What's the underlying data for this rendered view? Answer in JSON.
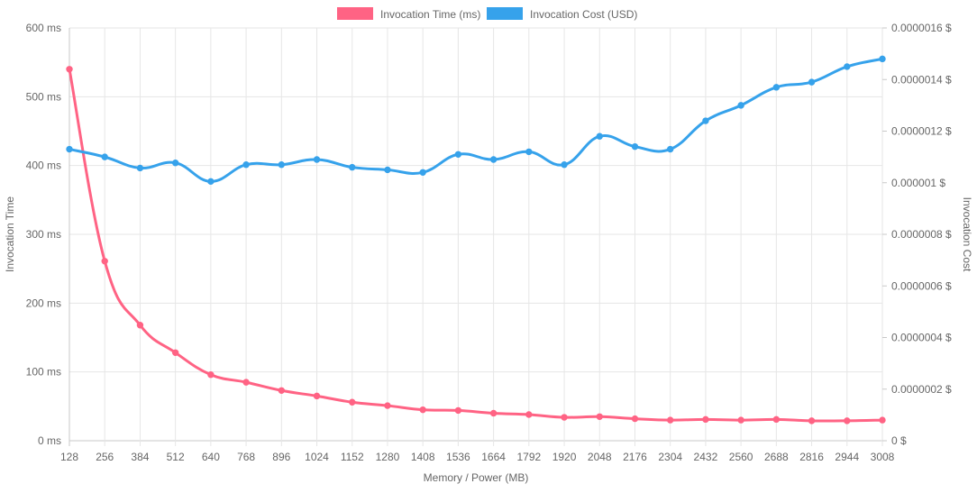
{
  "chart_data": {
    "type": "line",
    "title": "",
    "xlabel": "Memory / Power (MB)",
    "ylabel_left": "Invocation Time",
    "ylabel_right": "Invocation Cost",
    "categories": [
      "128",
      "256",
      "384",
      "512",
      "640",
      "768",
      "896",
      "1024",
      "1152",
      "1280",
      "1408",
      "1536",
      "1664",
      "1792",
      "1920",
      "2048",
      "2176",
      "2304",
      "2432",
      "2560",
      "2688",
      "2816",
      "2944",
      "3008"
    ],
    "left_axis": {
      "ylim": [
        0,
        600
      ],
      "ticks": [
        0,
        100,
        200,
        300,
        400,
        500,
        600
      ],
      "tick_labels": [
        "0 ms",
        "100 ms",
        "200 ms",
        "300 ms",
        "400 ms",
        "500 ms",
        "600 ms"
      ]
    },
    "right_axis": {
      "ylim": [
        0,
        1.6e-06
      ],
      "ticks": [
        0,
        2e-07,
        4e-07,
        6e-07,
        8e-07,
        1e-06,
        1.2e-06,
        1.4e-06,
        1.6e-06
      ],
      "tick_labels": [
        "0 $",
        "0.0000002 $",
        "0.0000004 $",
        "0.0000006 $",
        "0.0000008 $",
        "0.000001 $",
        "0.0000012 $",
        "0.0000014 $",
        "0.0000016 $"
      ]
    },
    "legend_position": "top-center",
    "grid": true,
    "series": [
      {
        "name": "Invocation Time (ms)",
        "axis": "left",
        "color": "#ff6384",
        "values": [
          540,
          261,
          168,
          128,
          96,
          85,
          73,
          65,
          56,
          51,
          45,
          44,
          40,
          38,
          34,
          35,
          32,
          30,
          31,
          30,
          31,
          29,
          29,
          30
        ]
      },
      {
        "name": "Invocation Cost (USD)",
        "axis": "right",
        "color": "#36a2eb",
        "values": [
          1.13e-06,
          1.1e-06,
          1.057e-06,
          1.077e-06,
          1.005e-06,
          1.07e-06,
          1.07e-06,
          1.09e-06,
          1.06e-06,
          1.05e-06,
          1.04e-06,
          1.11e-06,
          1.09e-06,
          1.12e-06,
          1.07e-06,
          1.18e-06,
          1.14e-06,
          1.13e-06,
          1.24e-06,
          1.3e-06,
          1.37e-06,
          1.39e-06,
          1.45e-06,
          1.48e-06
        ]
      }
    ]
  }
}
